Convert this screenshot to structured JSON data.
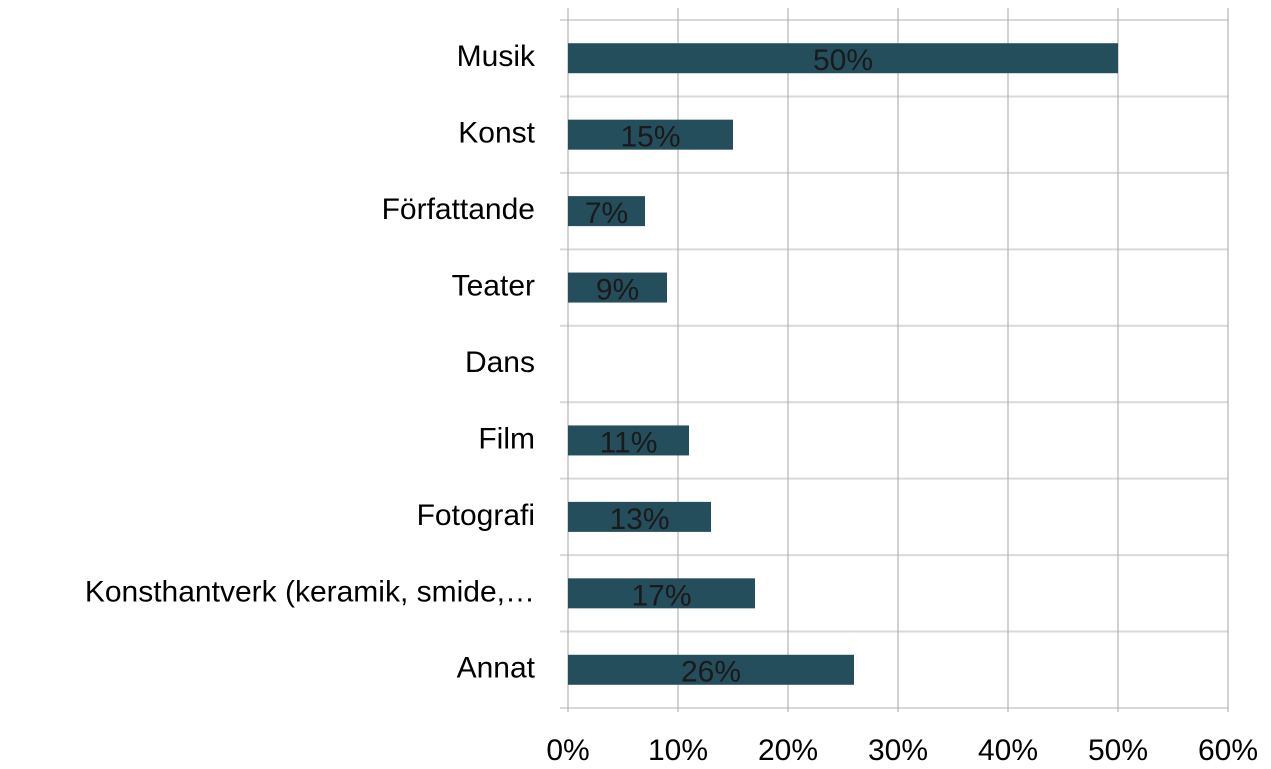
{
  "chart_data": {
    "type": "barh",
    "categories": [
      "Musik",
      "Konst",
      "Författande",
      "Teater",
      "Dans",
      "Film",
      "Fotografi",
      "Konsthantverk (keramik, smide,…",
      "Annat"
    ],
    "values": [
      50,
      15,
      7,
      9,
      null,
      11,
      13,
      17,
      26
    ],
    "value_labels": [
      "50%",
      "15%",
      "7%",
      "9%",
      null,
      "11%",
      "13%",
      "17%",
      "26%"
    ],
    "color": "#254e5c",
    "xlim": [
      0,
      60
    ],
    "xticks": [
      {
        "value": 0,
        "label": "0%"
      },
      {
        "value": 10,
        "label": "10%"
      },
      {
        "value": 20,
        "label": "20%"
      },
      {
        "value": 30,
        "label": "30%"
      },
      {
        "value": 40,
        "label": "40%"
      },
      {
        "value": 50,
        "label": "50%"
      },
      {
        "value": 60,
        "label": "60%"
      }
    ],
    "grid": true
  }
}
